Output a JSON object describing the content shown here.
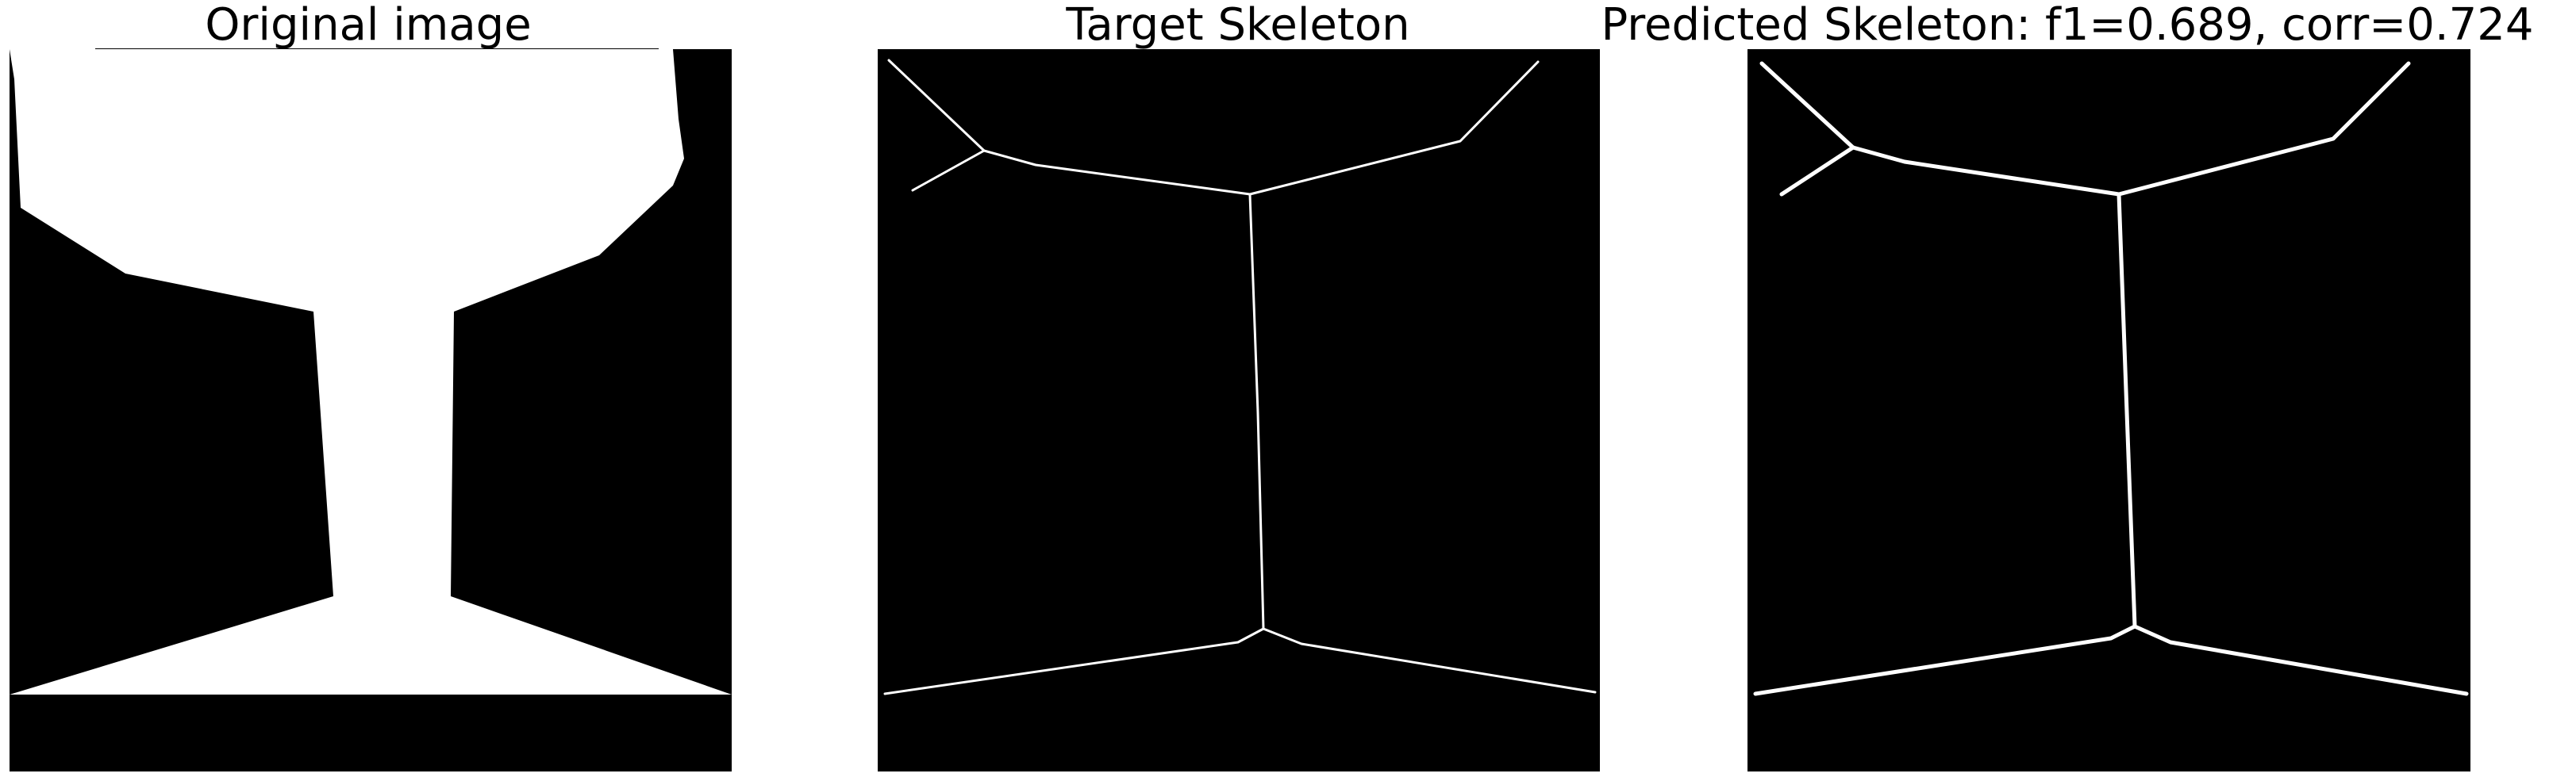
{
  "panels": {
    "original": {
      "title": "Original image"
    },
    "target": {
      "title": "Target Skeleton"
    },
    "predicted": {
      "title": "Predicted Skeleton: f1=0.689, corr=0.724"
    }
  },
  "colors": {
    "foreground": "#ffffff",
    "background": "#000000",
    "page": "#ffffff",
    "text": "#000000"
  }
}
